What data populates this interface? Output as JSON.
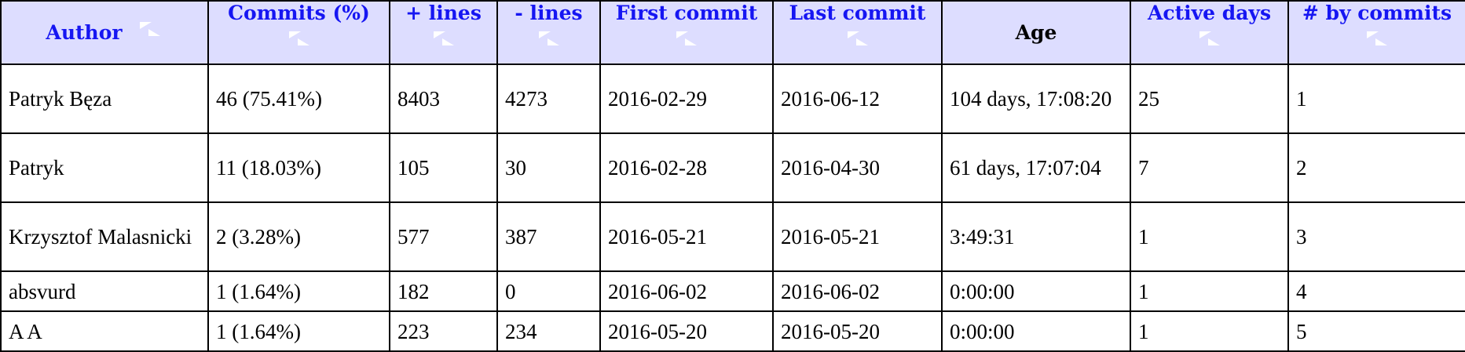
{
  "colors": {
    "header_bg": "#ddddff",
    "header_link": "#1616f2",
    "sort_icon": "#ffffff",
    "border": "#000000"
  },
  "table": {
    "headers": [
      {
        "label": "Author",
        "sortable": true,
        "icon": "sort-arrows-icon"
      },
      {
        "label": "Commits (%)",
        "sortable": true,
        "icon": "sort-arrows-icon"
      },
      {
        "label": "+ lines",
        "sortable": true,
        "icon": "sort-arrows-icon"
      },
      {
        "label": "- lines",
        "sortable": true,
        "icon": "sort-arrows-icon"
      },
      {
        "label": "First commit",
        "sortable": true,
        "icon": "sort-arrows-icon"
      },
      {
        "label": "Last commit",
        "sortable": true,
        "icon": "sort-arrows-icon"
      },
      {
        "label": "Age",
        "sortable": false
      },
      {
        "label": "Active days",
        "sortable": true,
        "icon": "sort-arrows-icon"
      },
      {
        "label": "# by commits",
        "sortable": true,
        "icon": "sort-arrows-icon"
      }
    ],
    "rows": [
      [
        "Patryk Bęza",
        "46 (75.41%)",
        "8403",
        "4273",
        "2016-02-29",
        "2016-06-12",
        "104 days, 17:08:20",
        "25",
        "1"
      ],
      [
        "Patryk",
        "11 (18.03%)",
        "105",
        "30",
        "2016-02-28",
        "2016-04-30",
        "61 days, 17:07:04",
        "7",
        "2"
      ],
      [
        "Krzysztof Malasnicki",
        "2 (3.28%)",
        "577",
        "387",
        "2016-05-21",
        "2016-05-21",
        "3:49:31",
        "1",
        "3"
      ],
      [
        "absvurd",
        "1 (1.64%)",
        "182",
        "0",
        "2016-06-02",
        "2016-06-02",
        "0:00:00",
        "1",
        "4"
      ],
      [
        "A A",
        "1 (1.64%)",
        "223",
        "234",
        "2016-05-20",
        "2016-05-20",
        "0:00:00",
        "1",
        "5"
      ]
    ]
  }
}
